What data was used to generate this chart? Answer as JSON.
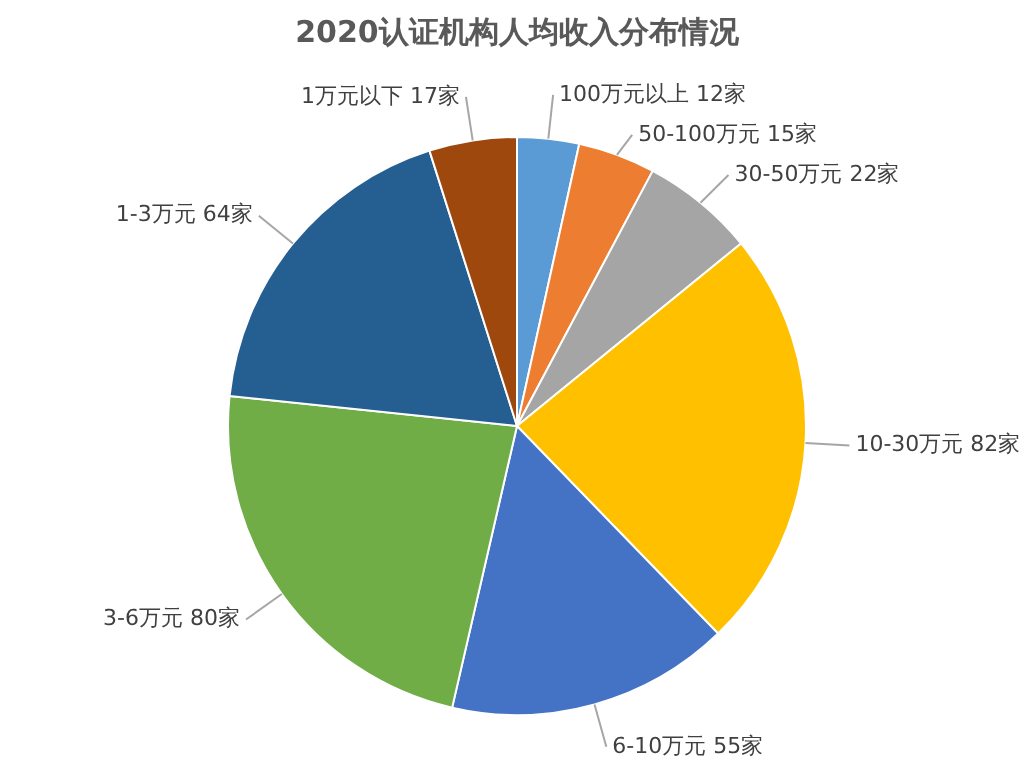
{
  "chart_data": {
    "type": "pie",
    "title": "2020认证机构人均收入分布情况",
    "categories": [
      "100万元以上",
      "50-100万元",
      "30-50万元",
      "10-30万元",
      "6-10万元",
      "3-6万元",
      "1-3万元",
      "1万元以下"
    ],
    "values": [
      12,
      15,
      22,
      82,
      55,
      80,
      64,
      17
    ],
    "value_labels": [
      "12家",
      "15家",
      "22家",
      "82家",
      "55家",
      "80家",
      "64家",
      "17家"
    ],
    "colors": [
      "#5b9bd5",
      "#ed7d31",
      "#a5a5a5",
      "#ffc000",
      "#4472c4",
      "#70ad47",
      "#255e91",
      "#9e480e"
    ],
    "legend": false
  }
}
